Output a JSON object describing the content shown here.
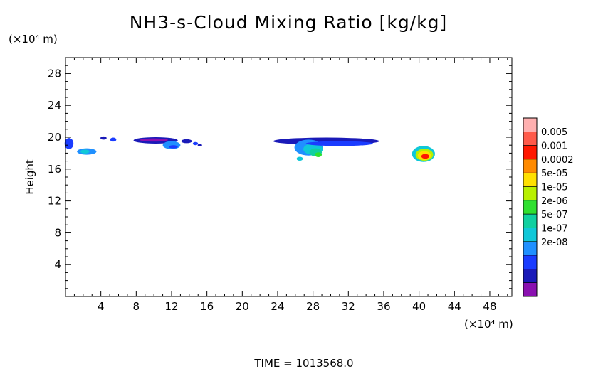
{
  "chart_data": {
    "type": "heatmap",
    "title": "NH3-s-Cloud Mixing Ratio [kg/kg]",
    "ylabel": "Height",
    "x_unit": "(×10⁴ m)",
    "y_unit": "(×10⁴ m)",
    "xlim": [
      0,
      50.5
    ],
    "ylim": [
      0,
      30
    ],
    "x_ticks": [
      4,
      8,
      12,
      16,
      20,
      24,
      28,
      32,
      36,
      40,
      44,
      48
    ],
    "y_ticks": [
      4,
      8,
      12,
      16,
      20,
      24,
      28
    ],
    "footer": "TIME = 1013568.0",
    "colorbar": {
      "labels": [
        "0.005",
        "0.001",
        "0.0002",
        "5e-05",
        "1e-05",
        "2e-06",
        "5e-07",
        "1e-07",
        "2e-08"
      ],
      "colors": [
        "#ffb0b0",
        "#ff5a4a",
        "#ff1800",
        "#ff8a00",
        "#ffe000",
        "#b8f000",
        "#30e030",
        "#10d0a0",
        "#10c8d8",
        "#2090ff",
        "#1a3cff",
        "#1a1ab8",
        "#8a10b0"
      ]
    },
    "cloud_regions": [
      {
        "x": 0.4,
        "y": 19.2,
        "rx": 0.5,
        "ry": 0.7,
        "level": 10
      },
      {
        "x": 2.4,
        "y": 18.2,
        "rx": 1.1,
        "ry": 0.4,
        "level": 9
      },
      {
        "x": 2.2,
        "y": 18.2,
        "rx": 0.5,
        "ry": 0.25,
        "level": 8
      },
      {
        "x": 4.3,
        "y": 19.9,
        "rx": 0.35,
        "ry": 0.2,
        "level": 11
      },
      {
        "x": 5.4,
        "y": 19.7,
        "rx": 0.35,
        "ry": 0.25,
        "level": 10
      },
      {
        "x": 10.2,
        "y": 19.6,
        "rx": 2.5,
        "ry": 0.4,
        "level": 11
      },
      {
        "x": 10.0,
        "y": 19.65,
        "rx": 1.6,
        "ry": 0.2,
        "level": 12
      },
      {
        "x": 12.0,
        "y": 19.0,
        "rx": 1.0,
        "ry": 0.5,
        "level": 9
      },
      {
        "x": 12.2,
        "y": 18.8,
        "rx": 0.5,
        "ry": 0.2,
        "level": 10
      },
      {
        "x": 13.7,
        "y": 19.5,
        "rx": 0.6,
        "ry": 0.25,
        "level": 11
      },
      {
        "x": 14.7,
        "y": 19.2,
        "rx": 0.3,
        "ry": 0.2,
        "level": 10
      },
      {
        "x": 15.2,
        "y": 19.0,
        "rx": 0.25,
        "ry": 0.15,
        "level": 11
      },
      {
        "x": 29.5,
        "y": 19.5,
        "rx": 6.0,
        "ry": 0.45,
        "level": 11
      },
      {
        "x": 27.5,
        "y": 18.7,
        "rx": 1.6,
        "ry": 1.0,
        "level": 9
      },
      {
        "x": 28.0,
        "y": 18.5,
        "rx": 1.1,
        "ry": 0.7,
        "level": 8
      },
      {
        "x": 28.3,
        "y": 18.1,
        "rx": 0.7,
        "ry": 0.5,
        "level": 7
      },
      {
        "x": 28.6,
        "y": 17.8,
        "rx": 0.4,
        "ry": 0.3,
        "level": 6
      },
      {
        "x": 31.0,
        "y": 19.2,
        "rx": 3.8,
        "ry": 0.3,
        "level": 10
      },
      {
        "x": 26.5,
        "y": 17.3,
        "rx": 0.35,
        "ry": 0.25,
        "level": 8
      },
      {
        "x": 40.5,
        "y": 17.9,
        "rx": 1.3,
        "ry": 1.0,
        "level": 8
      },
      {
        "x": 40.6,
        "y": 17.8,
        "rx": 1.0,
        "ry": 0.75,
        "level": 5
      },
      {
        "x": 40.6,
        "y": 17.7,
        "rx": 0.75,
        "ry": 0.55,
        "level": 4
      },
      {
        "x": 40.7,
        "y": 17.6,
        "rx": 0.45,
        "ry": 0.3,
        "level": 2
      }
    ]
  }
}
